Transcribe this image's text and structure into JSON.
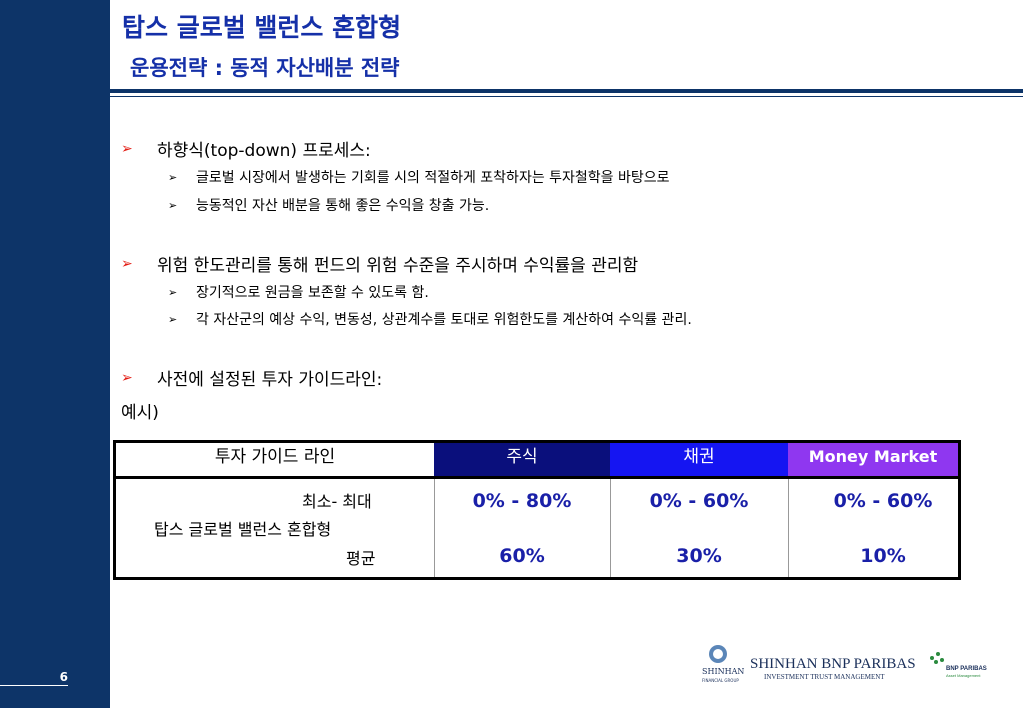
{
  "slide": {
    "title": "탑스 글로벌 밸런스 혼합형",
    "subtitle": "운용전략 : 동적 자산배분 전략",
    "page_number": "6"
  },
  "bullets": [
    {
      "text": "하향식(top-down) 프로세스:",
      "sub": [
        "글로벌 시장에서 발생하는 기회를 시의 적절하게 포착하자는 투자철학을 바탕으로",
        "능동적인 자산 배분을 통해 좋은 수익을 창출 가능."
      ]
    },
    {
      "text": "위험 한도관리를 통해 펀드의 위험 수준을 주시하며 수익률을 관리함",
      "sub": [
        "장기적으로 원금을 보존할 수 있도록 함.",
        "각 자산군의 예상 수익, 변동성, 상관계수를 토대로 위험한도를 계산하여 수익률 관리."
      ]
    },
    {
      "text": "사전에 설정된 투자 가이드라인:",
      "sub": []
    }
  ],
  "example_label": "예시)",
  "table": {
    "headers": [
      "투자 가이드 라인",
      "주식",
      "채권",
      "Money Market"
    ],
    "row_labels": {
      "range": "최소- 최대",
      "fund": "탑스 글로벌 밸런스 혼합형",
      "avg": "평균"
    },
    "range_values": [
      "0% - 80%",
      "0% - 60%",
      "0% - 60%"
    ],
    "avg_values": [
      "60%",
      "30%",
      "10%"
    ]
  },
  "logo": {
    "brand_small": "SHINHAN",
    "brand_small_sub": "FINANCIAL GROUP",
    "name": "SHINHAN BNP PARIBAS",
    "tagline": "INVESTMENT TRUST MANAGEMENT",
    "partner": "BNP PARIBAS",
    "partner_sub": "Asset Management"
  },
  "colors": {
    "navy": "#0d3468",
    "title_blue": "#1530a8",
    "bullet_red": "#e31b12",
    "stock_header": "#0a0f7c",
    "bond_header": "#1515f2",
    "mm_header": "#8f37f0",
    "value_blue": "#1a20a8"
  }
}
